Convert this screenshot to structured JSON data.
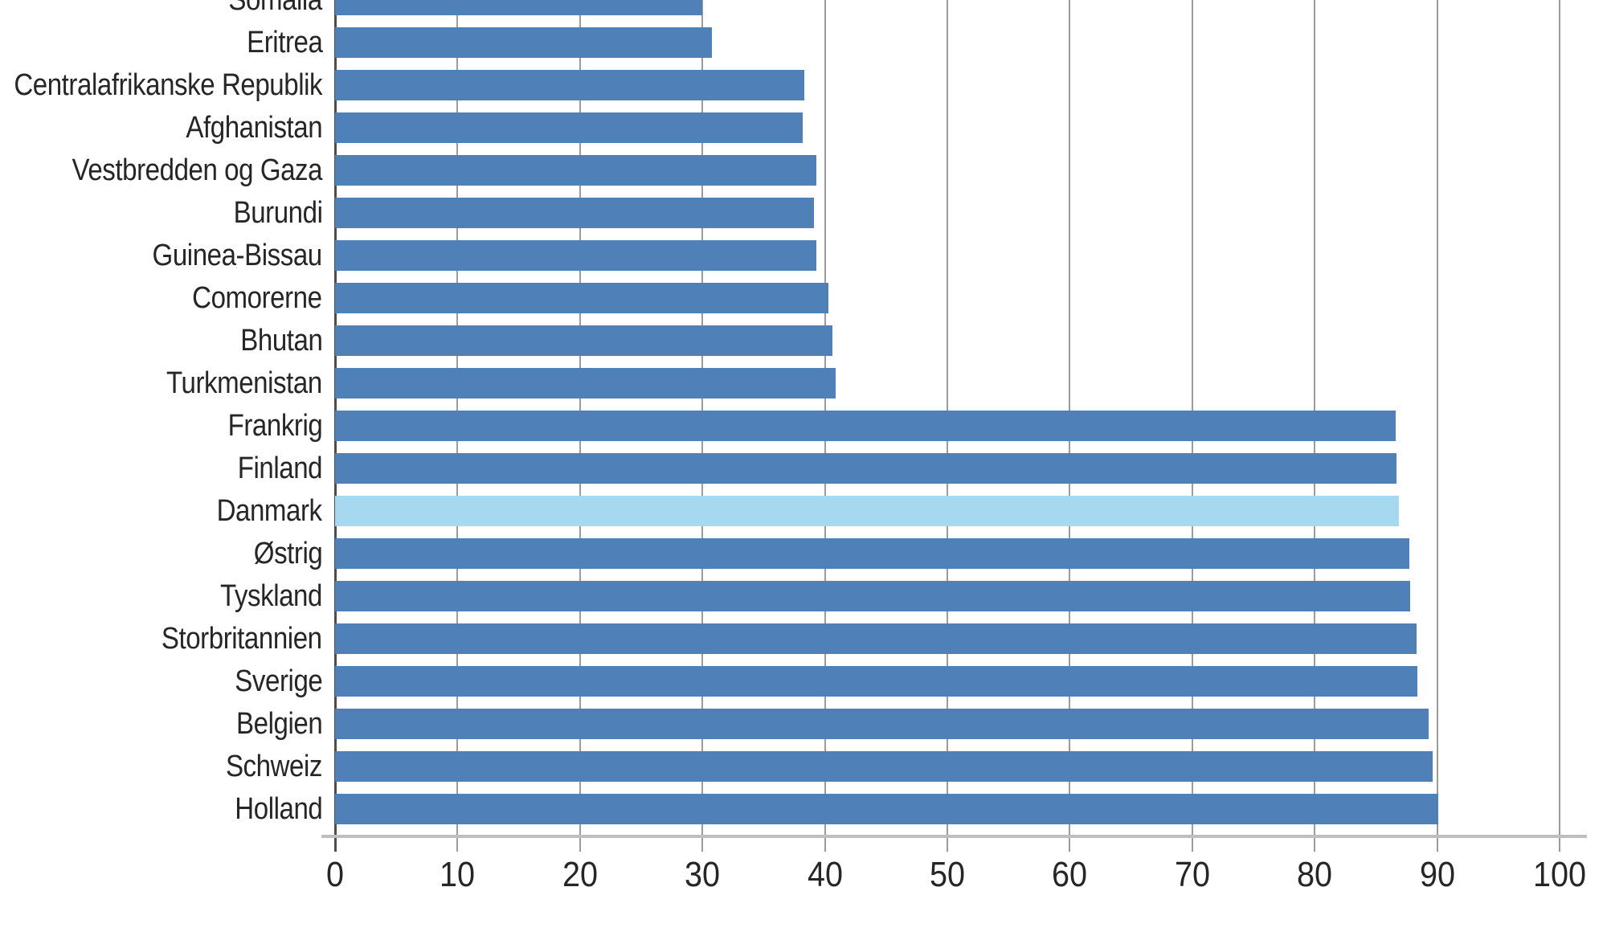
{
  "chart_data": {
    "type": "bar",
    "orientation": "horizontal",
    "categories": [
      "Somalia",
      "Eritrea",
      "Centralafrikanske Republik",
      "Afghanistan",
      "Vestbredden og Gaza",
      "Burundi",
      "Guinea-Bissau",
      "Comorerne",
      "Bhutan",
      "Turkmenistan",
      "Frankrig",
      "Finland",
      "Danmark",
      "Østrig",
      "Tyskland",
      "Storbritannien",
      "Sverige",
      "Belgien",
      "Schweiz",
      "Holland"
    ],
    "values": [
      30.0,
      30.8,
      38.3,
      38.2,
      39.3,
      39.1,
      39.3,
      40.3,
      40.6,
      40.9,
      86.6,
      86.7,
      86.9,
      87.7,
      87.8,
      88.3,
      88.4,
      89.3,
      89.6,
      90.1
    ],
    "highlighted_category": "Danmark",
    "x_ticks": [
      0,
      10,
      20,
      30,
      40,
      50,
      60,
      70,
      80,
      90,
      100
    ],
    "x_tick_labels": [
      "0",
      "10",
      "20",
      "30",
      "40",
      "50",
      "60",
      "70",
      "80",
      "90",
      "100"
    ],
    "xlim": [
      0,
      100
    ],
    "xlabel": "",
    "ylabel": "",
    "grid": true,
    "legend": false,
    "colors": {
      "bar": "#4f81b8",
      "highlight": "#a6d9f0",
      "gridline": "#9b9b9b",
      "zero_line": "#4d4d4d",
      "axis_line": "#bfbfbf",
      "text": "#262626"
    },
    "notes": "Top row (Somalia) is partially cut off at the upper edge of the screenshot"
  }
}
